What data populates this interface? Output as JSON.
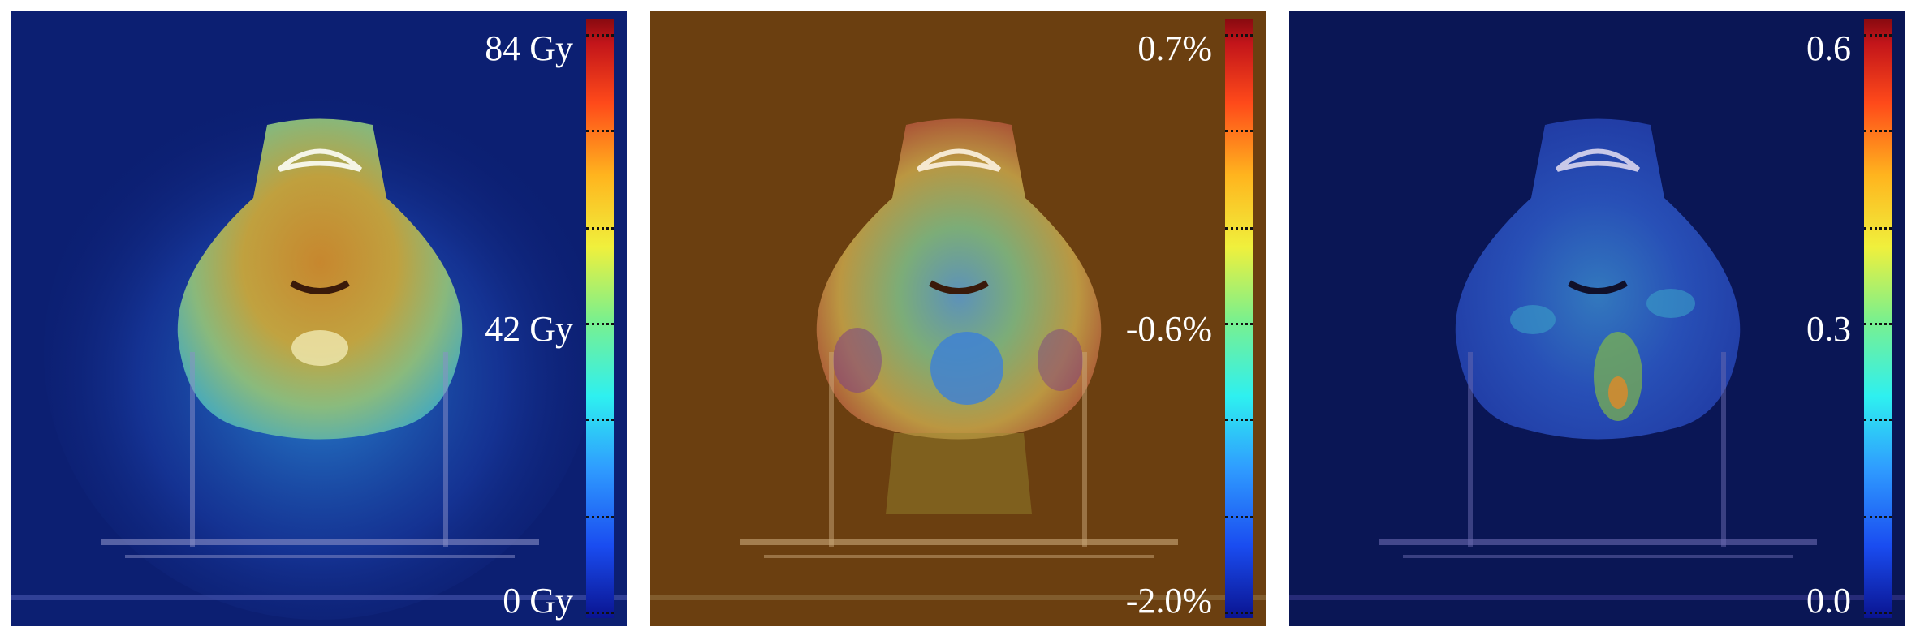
{
  "panels": [
    {
      "colorbar": {
        "max_label": "84 Gy",
        "mid_label": "42 Gy",
        "min_label": "0 Gy"
      },
      "background_color": "#0c1f72"
    },
    {
      "colorbar": {
        "max_label": "0.7%",
        "mid_label": "-0.6%",
        "min_label": "-2.0%"
      },
      "background_color": "#6b3f10"
    },
    {
      "colorbar": {
        "max_label": "0.6",
        "mid_label": "0.3",
        "min_label": "0.0"
      },
      "background_color": "#0a1655"
    }
  ]
}
